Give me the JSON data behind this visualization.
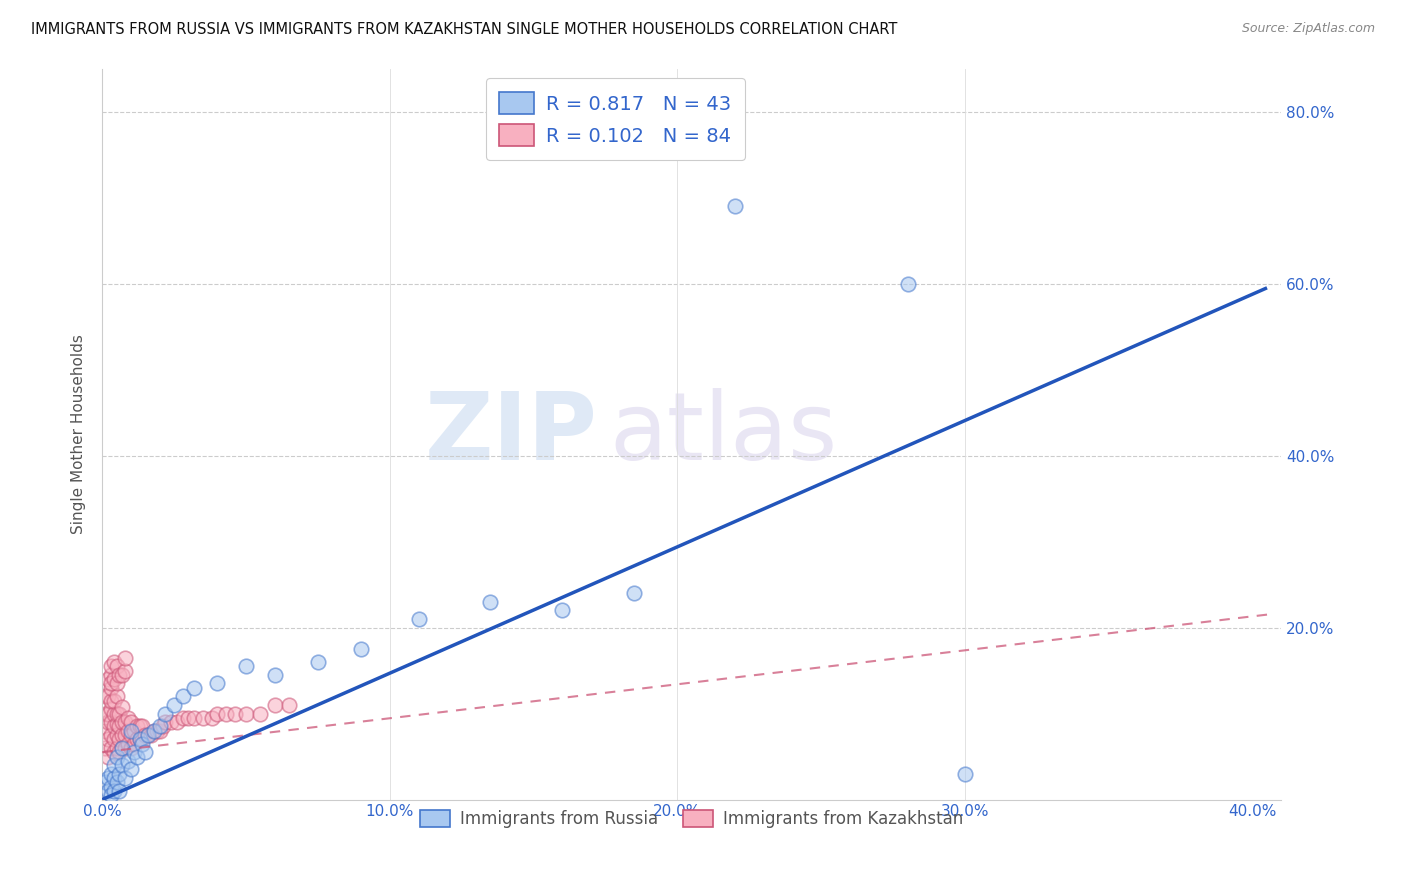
{
  "title": "IMMIGRANTS FROM RUSSIA VS IMMIGRANTS FROM KAZAKHSTAN SINGLE MOTHER HOUSEHOLDS CORRELATION CHART",
  "source": "Source: ZipAtlas.com",
  "ylabel_label": "Single Mother Households",
  "color_russia_fill": "#a8c8f0",
  "color_russia_edge": "#4477cc",
  "color_kazakhstan_fill": "#f8b0c0",
  "color_kazakhstan_edge": "#cc5577",
  "color_russia_line": "#2255bb",
  "color_kazakhstan_line": "#cc5577",
  "watermark_zip": "ZIP",
  "watermark_atlas": "atlas",
  "xlim": [
    0.0,
    0.41
  ],
  "ylim": [
    0.0,
    0.85
  ],
  "russia_line_x0": 0.0,
  "russia_line_y0": 0.0,
  "russia_line_x1": 0.405,
  "russia_line_y1": 0.595,
  "kaz_line_x0": 0.0,
  "kaz_line_y0": 0.055,
  "kaz_line_x1": 0.405,
  "kaz_line_y1": 0.215,
  "russia_x": [
    0.001,
    0.002,
    0.002,
    0.003,
    0.003,
    0.003,
    0.004,
    0.004,
    0.004,
    0.005,
    0.005,
    0.006,
    0.006,
    0.007,
    0.007,
    0.008,
    0.009,
    0.01,
    0.01,
    0.011,
    0.012,
    0.013,
    0.014,
    0.015,
    0.016,
    0.018,
    0.02,
    0.022,
    0.025,
    0.028,
    0.032,
    0.04,
    0.05,
    0.06,
    0.075,
    0.09,
    0.11,
    0.135,
    0.16,
    0.185,
    0.22,
    0.28,
    0.3
  ],
  "russia_y": [
    0.02,
    0.025,
    0.01,
    0.015,
    0.03,
    0.005,
    0.025,
    0.01,
    0.04,
    0.02,
    0.05,
    0.03,
    0.01,
    0.04,
    0.06,
    0.025,
    0.045,
    0.035,
    0.08,
    0.055,
    0.05,
    0.07,
    0.065,
    0.055,
    0.075,
    0.08,
    0.085,
    0.1,
    0.11,
    0.12,
    0.13,
    0.135,
    0.155,
    0.145,
    0.16,
    0.175,
    0.21,
    0.23,
    0.22,
    0.24,
    0.69,
    0.6,
    0.03
  ],
  "kaz_x": [
    0.001,
    0.001,
    0.001,
    0.001,
    0.002,
    0.002,
    0.002,
    0.002,
    0.002,
    0.002,
    0.003,
    0.003,
    0.003,
    0.003,
    0.003,
    0.003,
    0.003,
    0.004,
    0.004,
    0.004,
    0.004,
    0.004,
    0.005,
    0.005,
    0.005,
    0.005,
    0.005,
    0.006,
    0.006,
    0.006,
    0.006,
    0.007,
    0.007,
    0.007,
    0.007,
    0.008,
    0.008,
    0.008,
    0.009,
    0.009,
    0.009,
    0.01,
    0.01,
    0.01,
    0.011,
    0.011,
    0.012,
    0.012,
    0.013,
    0.013,
    0.014,
    0.014,
    0.015,
    0.016,
    0.017,
    0.018,
    0.019,
    0.02,
    0.021,
    0.022,
    0.024,
    0.026,
    0.028,
    0.03,
    0.032,
    0.035,
    0.038,
    0.04,
    0.043,
    0.046,
    0.05,
    0.055,
    0.06,
    0.065,
    0.003,
    0.003,
    0.004,
    0.004,
    0.005,
    0.005,
    0.006,
    0.007,
    0.008,
    0.008
  ],
  "kaz_y": [
    0.06,
    0.08,
    0.1,
    0.12,
    0.05,
    0.07,
    0.09,
    0.1,
    0.12,
    0.14,
    0.06,
    0.075,
    0.09,
    0.105,
    0.115,
    0.13,
    0.145,
    0.055,
    0.07,
    0.085,
    0.1,
    0.115,
    0.06,
    0.075,
    0.088,
    0.1,
    0.12,
    0.055,
    0.07,
    0.085,
    0.1,
    0.06,
    0.075,
    0.09,
    0.108,
    0.06,
    0.075,
    0.09,
    0.065,
    0.08,
    0.095,
    0.06,
    0.075,
    0.09,
    0.065,
    0.08,
    0.07,
    0.085,
    0.07,
    0.085,
    0.07,
    0.085,
    0.075,
    0.075,
    0.075,
    0.08,
    0.08,
    0.08,
    0.085,
    0.09,
    0.09,
    0.09,
    0.095,
    0.095,
    0.095,
    0.095,
    0.095,
    0.1,
    0.1,
    0.1,
    0.1,
    0.1,
    0.11,
    0.11,
    0.135,
    0.155,
    0.14,
    0.16,
    0.135,
    0.155,
    0.145,
    0.145,
    0.15,
    0.165
  ]
}
